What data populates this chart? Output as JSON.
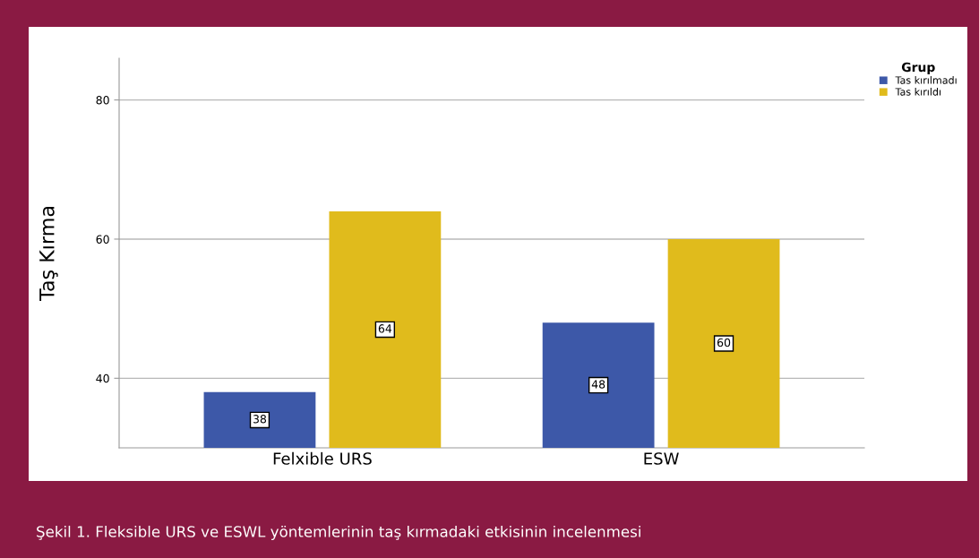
{
  "chart_data": {
    "type": "bar",
    "ylabel": "Taş Kırma",
    "legend_title": "Grup",
    "categories": [
      "Felxible URS",
      "ESW"
    ],
    "series": [
      {
        "name": "Tas kırılmadı",
        "color": "#3d58a8",
        "values": [
          38,
          48
        ]
      },
      {
        "name": "Tas kırıldı",
        "color": "#e0bb1c",
        "values": [
          64,
          60
        ]
      }
    ],
    "ylim": [
      30,
      86
    ],
    "yticks": [
      40,
      60,
      80
    ],
    "grid": "y",
    "legend": "top right",
    "data_labels": true,
    "annotations": [
      "Şekil 1. Fleksible URS ve ESWL yöntemlerinin taş kırmadaki etkisinin incelenmesi"
    ]
  }
}
